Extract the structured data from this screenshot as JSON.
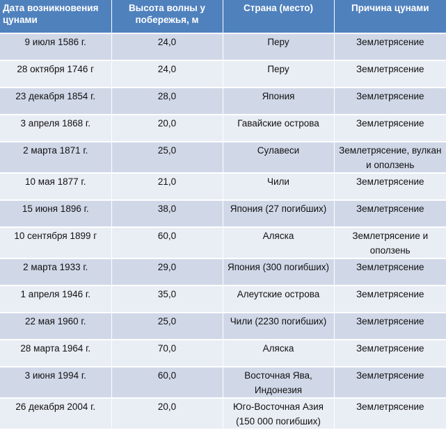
{
  "table": {
    "headers": [
      "Дата возникновения цунами",
      "Высота волны у побережья, м",
      "Страна (место)",
      "Причина  цунами"
    ],
    "rows": [
      [
        "9 июля 1586 г.",
        "24,0",
        "Перу",
        "Землетрясение"
      ],
      [
        "28 октября 1746 г",
        "24,0",
        "Перу",
        "Землетрясение"
      ],
      [
        "23 декабря 1854 г.",
        "28,0",
        "Япония",
        "Землетрясение"
      ],
      [
        "3 апреля 1868 г.",
        "20,0",
        "Гавайские острова",
        "Землетрясение"
      ],
      [
        "2 марта 1871 г.",
        "25,0",
        "Сулавеси",
        "Землетрясение, вулкан и оползень"
      ],
      [
        "10 мая 1877 г.",
        "21,0",
        "Чили",
        "Землетрясение"
      ],
      [
        "15 июня 1896 г.",
        "38,0",
        "Япония (27 погибших)",
        "Землетрясение"
      ],
      [
        "10 сентября 1899 г",
        "60,0",
        "Аляска",
        "Землетрясение и оползень"
      ],
      [
        "2 марта 1933 г.",
        "29,0",
        "Япония (300 погибших)",
        "Землетрясение"
      ],
      [
        "1 апреля 1946 г.",
        "35,0",
        "Алеутские острова",
        "Землетрясение"
      ],
      [
        "22 мая 1960 г.",
        "25,0",
        "Чили (2230 погибших)",
        "Землетрясение"
      ],
      [
        "28 марта 1964 г.",
        "70,0",
        "Аляска",
        "Землетрясение"
      ],
      [
        "3 июня 1994 г.",
        "60,0",
        "Восточная Ява, Индонезия",
        "Землетрясение"
      ],
      [
        "26 декабря 2004 г.",
        "20,0",
        "Юго-Восточная Азия (150 000 погибших)",
        "Землетрясение"
      ]
    ]
  },
  "colors": {
    "header_bg": "#4f81bd",
    "header_text": "#ffffff",
    "row_odd": "#d0d8e8",
    "row_even": "#e9edf4"
  }
}
